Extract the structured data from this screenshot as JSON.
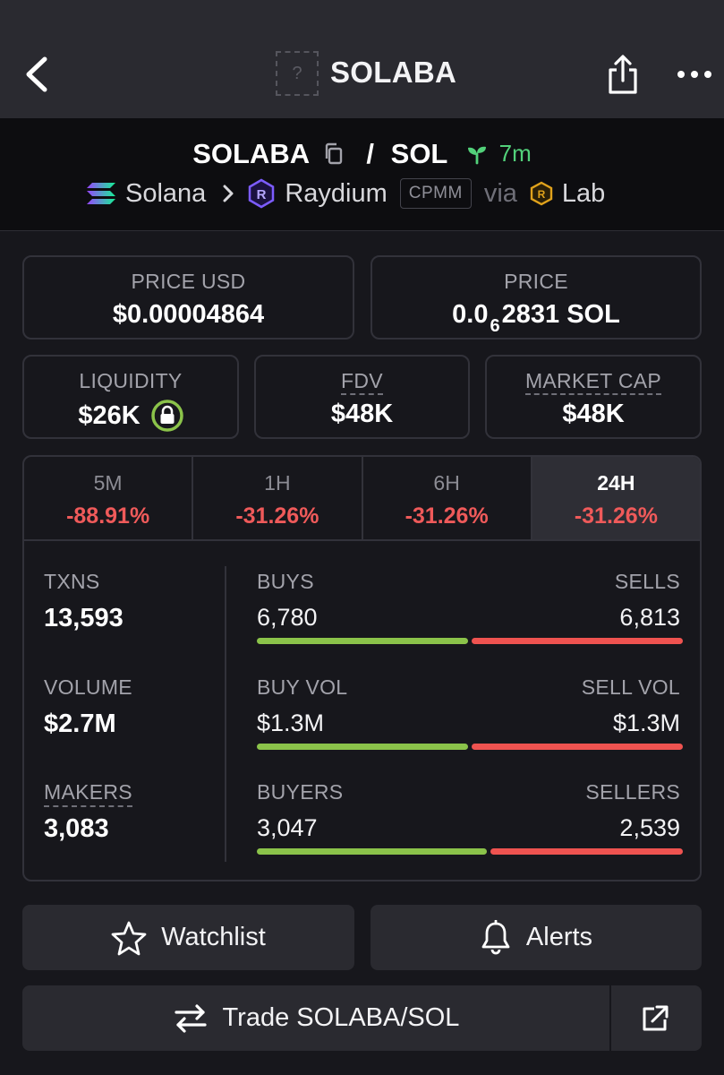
{
  "header": {
    "title": "SOLABA",
    "token_placeholder": "?",
    "back_icon": "chevron-left-icon",
    "share_icon": "share-icon",
    "more_icon": "more-dots-icon"
  },
  "pair": {
    "base": "SOLABA",
    "separator": "/",
    "quote": "SOL",
    "age": "7m",
    "chain": "Solana",
    "dex": "Raydium",
    "pool_type": "CPMM",
    "via": "via",
    "launchpad": "Lab"
  },
  "price_cards": {
    "price_usd_label": "PRICE USD",
    "price_usd_value": "$0.00004864",
    "price_label": "PRICE",
    "price_prefix": "0.0",
    "price_zero_count": "6",
    "price_suffix": "2831 SOL"
  },
  "metric_cards": {
    "liquidity_label": "LIQUIDITY",
    "liquidity_value": "$26K",
    "fdv_label": "FDV",
    "fdv_value": "$48K",
    "mcap_label": "MARKET CAP",
    "mcap_value": "$48K"
  },
  "timeframes": [
    {
      "label": "5M",
      "change": "-88.91%"
    },
    {
      "label": "1H",
      "change": "-31.26%"
    },
    {
      "label": "6H",
      "change": "-31.26%"
    },
    {
      "label": "24H",
      "change": "-31.26%"
    }
  ],
  "stats": {
    "txns_label": "TXNS",
    "txns_value": "13,593",
    "volume_label": "VOLUME",
    "volume_value": "$2.7M",
    "makers_label": "MAKERS",
    "makers_value": "3,083",
    "buys_label": "BUYS",
    "buys_value": "6,780",
    "sells_label": "SELLS",
    "sells_value": "6,813",
    "buy_vol_label": "BUY VOL",
    "buy_vol_value": "$1.3M",
    "sell_vol_label": "SELL VOL",
    "sell_vol_value": "$1.3M",
    "buyers_label": "BUYERS",
    "buyers_value": "3,047",
    "sellers_label": "SELLERS",
    "sellers_value": "2,539",
    "buys_share": 0.499,
    "buy_vol_share": 0.5,
    "buyers_share": 0.545,
    "buy_color": "#8bc34a",
    "sell_color": "#ef5350"
  },
  "actions": {
    "watchlist_label": "Watchlist",
    "alerts_label": "Alerts",
    "trade_label": "Trade SOLABA/SOL"
  }
}
